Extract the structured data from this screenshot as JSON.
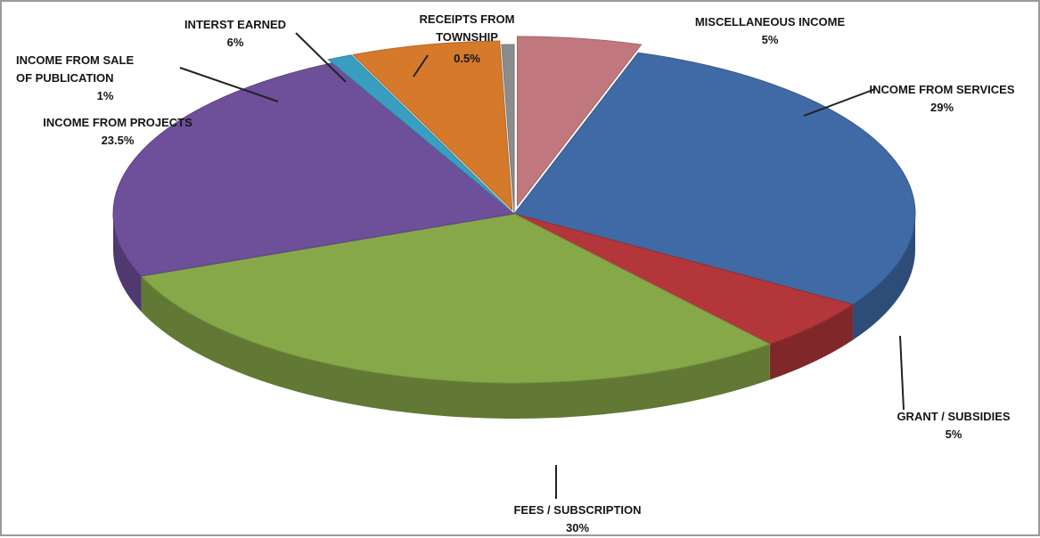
{
  "chart_data": {
    "type": "pie",
    "title": "",
    "slices": [
      {
        "label": "MISCELLANEOUS INCOME",
        "value_label": "5%",
        "value": 5,
        "color": "#c0787e"
      },
      {
        "label": "INCOME FROM SERVICES",
        "value_label": "29%",
        "value": 29,
        "color": "#3f6aa5"
      },
      {
        "label": "GRANT / SUBSIDIES",
        "value_label": "5%",
        "value": 5,
        "color": "#b2363a"
      },
      {
        "label": "FEES / SUBSCRIPTION",
        "value_label": "30%",
        "value": 30,
        "color": "#87a848"
      },
      {
        "label": "INCOME FROM PROJECTS",
        "value_label": "23.5%",
        "value": 23.5,
        "color": "#6e4f9a"
      },
      {
        "label": "INCOME FROM SALE OF PUBLICATION",
        "value_label": "1%",
        "value": 1,
        "color": "#3a9ec0"
      },
      {
        "label": "INTERST EARNED",
        "value_label": "6%",
        "value": 6,
        "color": "#d47a2a"
      },
      {
        "label": "RECEIPTS FROM TOWNSHIP",
        "value_label": "0.5%",
        "value": 0.5,
        "color": "#8c8c8c"
      }
    ]
  }
}
